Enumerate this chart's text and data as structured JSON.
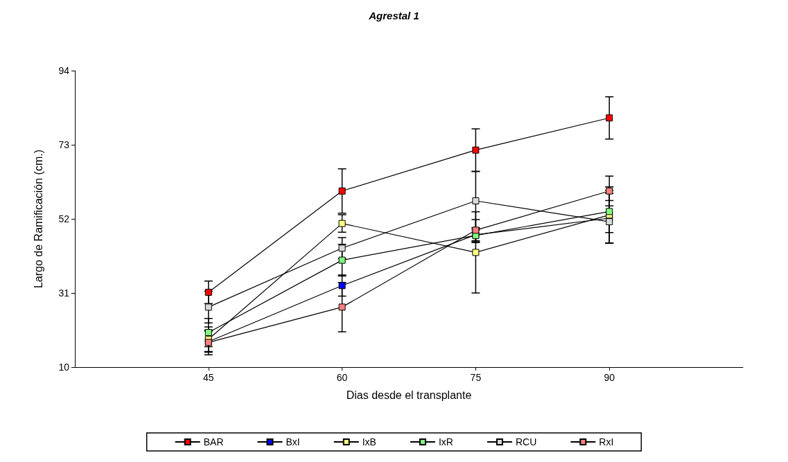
{
  "chart_data": {
    "type": "line",
    "title": "Agrestal 1",
    "xlabel": "Dias desde el transplante",
    "ylabel": "Largo de Ramificación (cm.)",
    "x": [
      45,
      60,
      75,
      90
    ],
    "xlim": [
      30,
      105
    ],
    "xticks": [
      45,
      60,
      75,
      90
    ],
    "ylim": [
      10,
      94
    ],
    "yticks": [
      10,
      31,
      52,
      73,
      94
    ],
    "grid": false,
    "legend": "bottom",
    "marker": "square",
    "line_style": "solid",
    "series": [
      {
        "name": "BAR",
        "color": "#ff0000",
        "values": [
          31.2,
          59.9,
          71.5,
          80.6
        ],
        "errors": [
          3.2,
          6.3,
          6,
          6
        ]
      },
      {
        "name": "BxI",
        "color": "#0000ff",
        "values": [
          17.2,
          33.1,
          47.5,
          52.2
        ],
        "errors": [
          3,
          3,
          2,
          7
        ]
      },
      {
        "name": "IxB",
        "color": "#ffff80",
        "values": [
          17.9,
          50.7,
          42.5,
          53.1
        ],
        "errors": [
          3.5,
          2.5,
          11.5,
          8
        ]
      },
      {
        "name": "IxR",
        "color": "#80ff80",
        "values": [
          19.8,
          40.3,
          47.3,
          54.1
        ],
        "errors": [
          4,
          4.5,
          2,
          6
        ]
      },
      {
        "name": "RCU",
        "color": "#d9d9d9",
        "values": [
          27,
          43.7,
          57.1,
          51.2
        ],
        "errors": [
          4.5,
          3,
          8.3,
          6
        ]
      },
      {
        "name": "RxI",
        "color": "#ff8080",
        "values": [
          17,
          27,
          48.8,
          59.9
        ],
        "errors": [
          3.5,
          7,
          3,
          4.2
        ]
      }
    ]
  }
}
